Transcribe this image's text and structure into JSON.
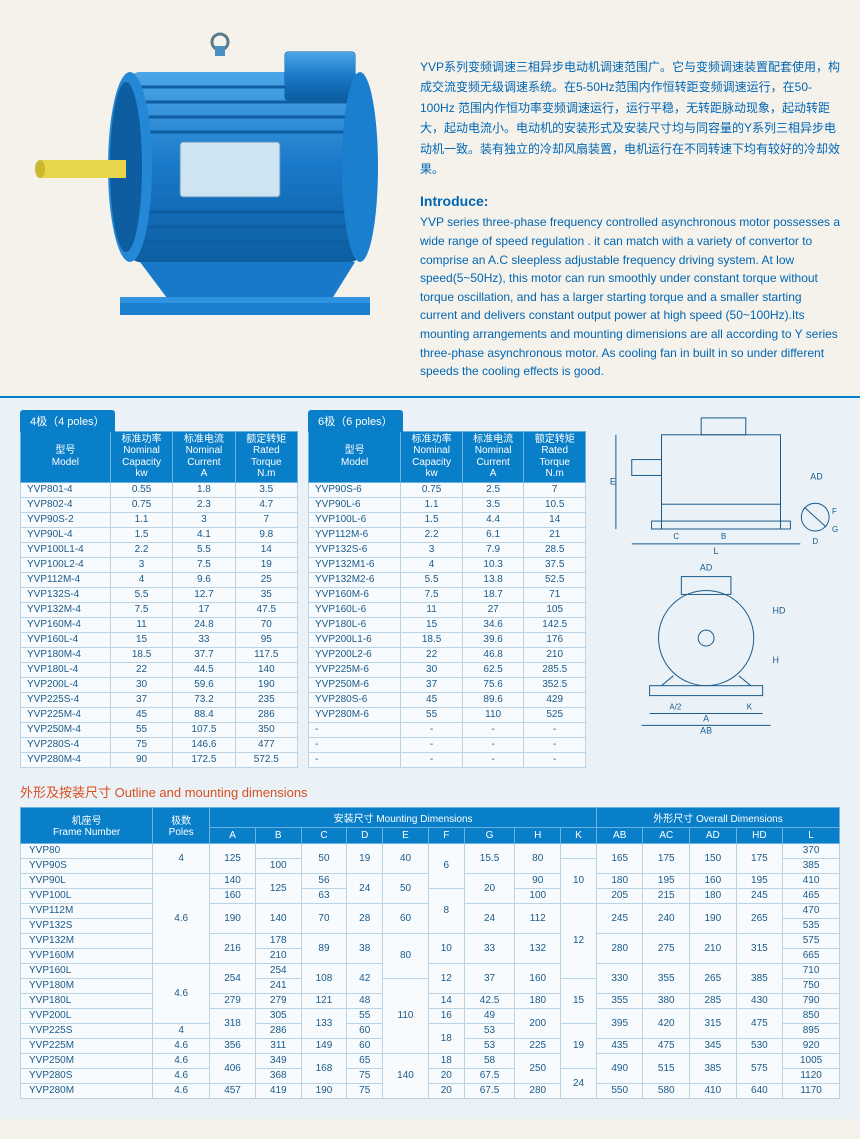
{
  "intro": {
    "cn": "YVP系列变频调速三相异步电动机调速范围广。它与变频调速装置配套使用，构成交流变频无级调速系统。在5-50Hz范围内作恒转距变频调速运行，在50-100Hz 范围内作恒功率变频调速运行，运行平稳，无转距脉动现象，起动转距大，起动电流小。电动机的安装形式及安装尺寸均与同容量的Y系列三相异步电动机一致。装有独立的冷却风扇装置，电机运行在不同转速下均有较好的冷却效果。",
    "title": "Introduce:",
    "en": "YVP series three-phase frequency controlled asynchronous motor possesses a wide range of speed regulation . it can match with a variety of convertor to comprise an A.C sleepless adjustable frequency driving system. At low speed(5~50Hz), this motor can run smoothly under constant torque without torque oscillation, and has a larger starting torque and a smaller starting current and delivers constant output power at high speed (50~100Hz).Its mounting arrangements and mounting dimensions are all according to Y series three-phase asynchronous motor. As cooling fan in built in so under different speeds the cooling effects is good."
  },
  "spec_headers": {
    "model": "型号\nModel",
    "capacity": "标准功率\nNominal\nCapacity\nkw",
    "current": "标准电流\nNominal\nCurrent\nA",
    "torque": "额定转矩\nRated\nTorque\nN.m"
  },
  "pole4": {
    "tab": "4极（4 poles）",
    "rows": [
      [
        "YVP801-4",
        "0.55",
        "1.8",
        "3.5"
      ],
      [
        "YVP802-4",
        "0.75",
        "2.3",
        "4.7"
      ],
      [
        "YVP90S-2",
        "1.1",
        "3",
        "7"
      ],
      [
        "YVP90L-4",
        "1.5",
        "4.1",
        "9.8"
      ],
      [
        "YVP100L1-4",
        "2.2",
        "5.5",
        "14"
      ],
      [
        "YVP100L2-4",
        "3",
        "7.5",
        "19"
      ],
      [
        "YVP112M-4",
        "4",
        "9.6",
        "25"
      ],
      [
        "YVP132S-4",
        "5.5",
        "12.7",
        "35"
      ],
      [
        "YVP132M-4",
        "7.5",
        "17",
        "47.5"
      ],
      [
        "YVP160M-4",
        "11",
        "24.8",
        "70"
      ],
      [
        "YVP160L-4",
        "15",
        "33",
        "95"
      ],
      [
        "YVP180M-4",
        "18.5",
        "37.7",
        "117.5"
      ],
      [
        "YVP180L-4",
        "22",
        "44.5",
        "140"
      ],
      [
        "YVP200L-4",
        "30",
        "59.6",
        "190"
      ],
      [
        "YVP225S-4",
        "37",
        "73.2",
        "235"
      ],
      [
        "YVP225M-4",
        "45",
        "88.4",
        "286"
      ],
      [
        "YVP250M-4",
        "55",
        "107.5",
        "350"
      ],
      [
        "YVP280S-4",
        "75",
        "146.6",
        "477"
      ],
      [
        "YVP280M-4",
        "90",
        "172.5",
        "572.5"
      ]
    ]
  },
  "pole6": {
    "tab": "6极（6 poles）",
    "rows": [
      [
        "YVP90S-6",
        "0.75",
        "2.5",
        "7"
      ],
      [
        "YVP90L-6",
        "1.1",
        "3.5",
        "10.5"
      ],
      [
        "YVP100L-6",
        "1.5",
        "4.4",
        "14"
      ],
      [
        "YVP112M-6",
        "2.2",
        "6.1",
        "21"
      ],
      [
        "YVP132S-6",
        "3",
        "7.9",
        "28.5"
      ],
      [
        "YVP132M1-6",
        "4",
        "10.3",
        "37.5"
      ],
      [
        "YVP132M2-6",
        "5.5",
        "13.8",
        "52.5"
      ],
      [
        "YVP160M-6",
        "7.5",
        "18.7",
        "71"
      ],
      [
        "YVP160L-6",
        "11",
        "27",
        "105"
      ],
      [
        "YVP180L-6",
        "15",
        "34.6",
        "142.5"
      ],
      [
        "YVP200L1-6",
        "18.5",
        "39.6",
        "176"
      ],
      [
        "YVP200L2-6",
        "22",
        "46.8",
        "210"
      ],
      [
        "YVP225M-6",
        "30",
        "62.5",
        "285.5"
      ],
      [
        "YVP250M-6",
        "37",
        "75.6",
        "352.5"
      ],
      [
        "YVP280S-6",
        "45",
        "89.6",
        "429"
      ],
      [
        "YVP280M-6",
        "55",
        "110",
        "525"
      ],
      [
        "-",
        "-",
        "-",
        "-"
      ],
      [
        "-",
        "-",
        "-",
        "-"
      ],
      [
        "-",
        "-",
        "-",
        "-"
      ]
    ]
  },
  "dim": {
    "title": "外形及按装尺寸 Outline and mounting dimensions",
    "head1": {
      "frame": "机座号\nFrame Number",
      "poles": "极数\nPoles",
      "mount": "安装尺寸 Mounting Dimensions",
      "overall": "外形尺寸 Overall Dimensions"
    },
    "head2": [
      "A",
      "B",
      "C",
      "D",
      "E",
      "F",
      "G",
      "H",
      "K",
      "AB",
      "AC",
      "AD",
      "HD",
      "L"
    ],
    "rows": [
      {
        "f": "YVP80",
        "p": "4",
        "A": "125",
        "B": "",
        "C": "50",
        "D": "19",
        "E": "40",
        "F": "6",
        "G": "15.5",
        "H": "80",
        "K": "",
        "AB": "165",
        "AC": "175",
        "AD": "150",
        "HD": "175",
        "L": "370"
      },
      {
        "f": "YVP90S",
        "p": "",
        "A": "",
        "B": "100",
        "C": "",
        "D": "",
        "E": "",
        "F": "",
        "G": "",
        "H": "",
        "K": "10",
        "AB": "",
        "AC": "",
        "AD": "",
        "HD": "",
        "L": "385"
      },
      {
        "f": "YVP90L",
        "p": "4.6",
        "A": "140",
        "B": "125",
        "C": "56",
        "D": "24",
        "E": "50",
        "F": "",
        "G": "20",
        "H": "90",
        "K": "",
        "AB": "180",
        "AC": "195",
        "AD": "160",
        "HD": "195",
        "L": "410"
      },
      {
        "f": "YVP100L",
        "p": "",
        "A": "160",
        "B": "",
        "C": "63",
        "D": "",
        "E": "",
        "F": "8",
        "G": "",
        "H": "100",
        "K": "",
        "AB": "205",
        "AC": "215",
        "AD": "180",
        "HD": "245",
        "L": "465"
      },
      {
        "f": "YVP112M",
        "p": "",
        "A": "190",
        "B": "140",
        "C": "70",
        "D": "28",
        "E": "60",
        "F": "",
        "G": "24",
        "H": "112",
        "K": "12",
        "AB": "245",
        "AC": "240",
        "AD": "190",
        "HD": "265",
        "L": "470"
      },
      {
        "f": "YVP132S",
        "p": "",
        "A": "",
        "B": "",
        "C": "",
        "D": "",
        "E": "",
        "F": "",
        "G": "",
        "H": "",
        "K": "",
        "AB": "",
        "AC": "",
        "AD": "",
        "HD": "",
        "L": "535"
      },
      {
        "f": "YVP132M",
        "p": "",
        "A": "216",
        "B": "178",
        "C": "89",
        "D": "38",
        "E": "80",
        "F": "10",
        "G": "33",
        "H": "132",
        "K": "",
        "AB": "280",
        "AC": "275",
        "AD": "210",
        "HD": "315",
        "L": "575"
      },
      {
        "f": "YVP160M",
        "p": "",
        "A": "",
        "B": "210",
        "C": "",
        "D": "",
        "E": "",
        "F": "",
        "G": "",
        "H": "",
        "K": "",
        "AB": "",
        "AC": "",
        "AD": "",
        "HD": "",
        "L": "665"
      },
      {
        "f": "YVP160L",
        "p": "4.6",
        "A": "254",
        "B": "254",
        "C": "108",
        "D": "42",
        "E": "",
        "F": "12",
        "G": "37",
        "H": "160",
        "K": "",
        "AB": "330",
        "AC": "355",
        "AD": "265",
        "HD": "385",
        "L": "710"
      },
      {
        "f": "YVP180M",
        "p": "",
        "A": "",
        "B": "241",
        "C": "",
        "D": "",
        "E": "110",
        "F": "",
        "G": "",
        "H": "",
        "K": "15",
        "AB": "",
        "AC": "",
        "AD": "",
        "HD": "",
        "L": "750"
      },
      {
        "f": "YVP180L",
        "p": "",
        "A": "279",
        "B": "279",
        "C": "121",
        "D": "48",
        "E": "",
        "F": "14",
        "G": "42.5",
        "H": "180",
        "K": "",
        "AB": "355",
        "AC": "380",
        "AD": "285",
        "HD": "430",
        "L": "790"
      },
      {
        "f": "YVP200L",
        "p": "",
        "A": "318",
        "B": "305",
        "C": "133",
        "D": "55",
        "E": "",
        "F": "16",
        "G": "49",
        "H": "200",
        "K": "",
        "AB": "395",
        "AC": "420",
        "AD": "315",
        "HD": "475",
        "L": "850"
      },
      {
        "f": "YVP225S",
        "p": "4",
        "A": "",
        "B": "286",
        "C": "",
        "D": "60",
        "E": "",
        "F": "18",
        "G": "53",
        "H": "",
        "K": "19",
        "AB": "",
        "AC": "",
        "AD": "",
        "HD": "",
        "L": "895"
      },
      {
        "f": "YVP225M",
        "p": "4.6",
        "A": "356",
        "B": "311",
        "C": "149",
        "D": "60",
        "E": "",
        "F": "",
        "G": "53",
        "H": "225",
        "K": "",
        "AB": "435",
        "AC": "475",
        "AD": "345",
        "HD": "530",
        "L": "920"
      },
      {
        "f": "YVP250M",
        "p": "4.6",
        "A": "406",
        "B": "349",
        "C": "168",
        "D": "65",
        "E": "140",
        "F": "18",
        "G": "58",
        "H": "250",
        "K": "",
        "AB": "490",
        "AC": "515",
        "AD": "385",
        "HD": "575",
        "L": "1005"
      },
      {
        "f": "YVP280S",
        "p": "4.6",
        "A": "",
        "B": "368",
        "C": "",
        "D": "75",
        "E": "",
        "F": "20",
        "G": "67.5",
        "H": "",
        "K": "24",
        "AB": "",
        "AC": "",
        "AD": "",
        "HD": "",
        "L": "1120"
      },
      {
        "f": "YVP280M",
        "p": "4.6",
        "A": "457",
        "B": "419",
        "C": "190",
        "D": "75",
        "E": "",
        "F": "20",
        "G": "67.5",
        "H": "280",
        "K": "",
        "AB": "550",
        "AC": "580",
        "AD": "410",
        "HD": "640",
        "L": "1170"
      }
    ]
  },
  "colors": {
    "header_bg": "#0a7fc9",
    "text_blue": "#0066b3",
    "cell_border": "#b8d4e6",
    "accent": "#d94f1e"
  }
}
